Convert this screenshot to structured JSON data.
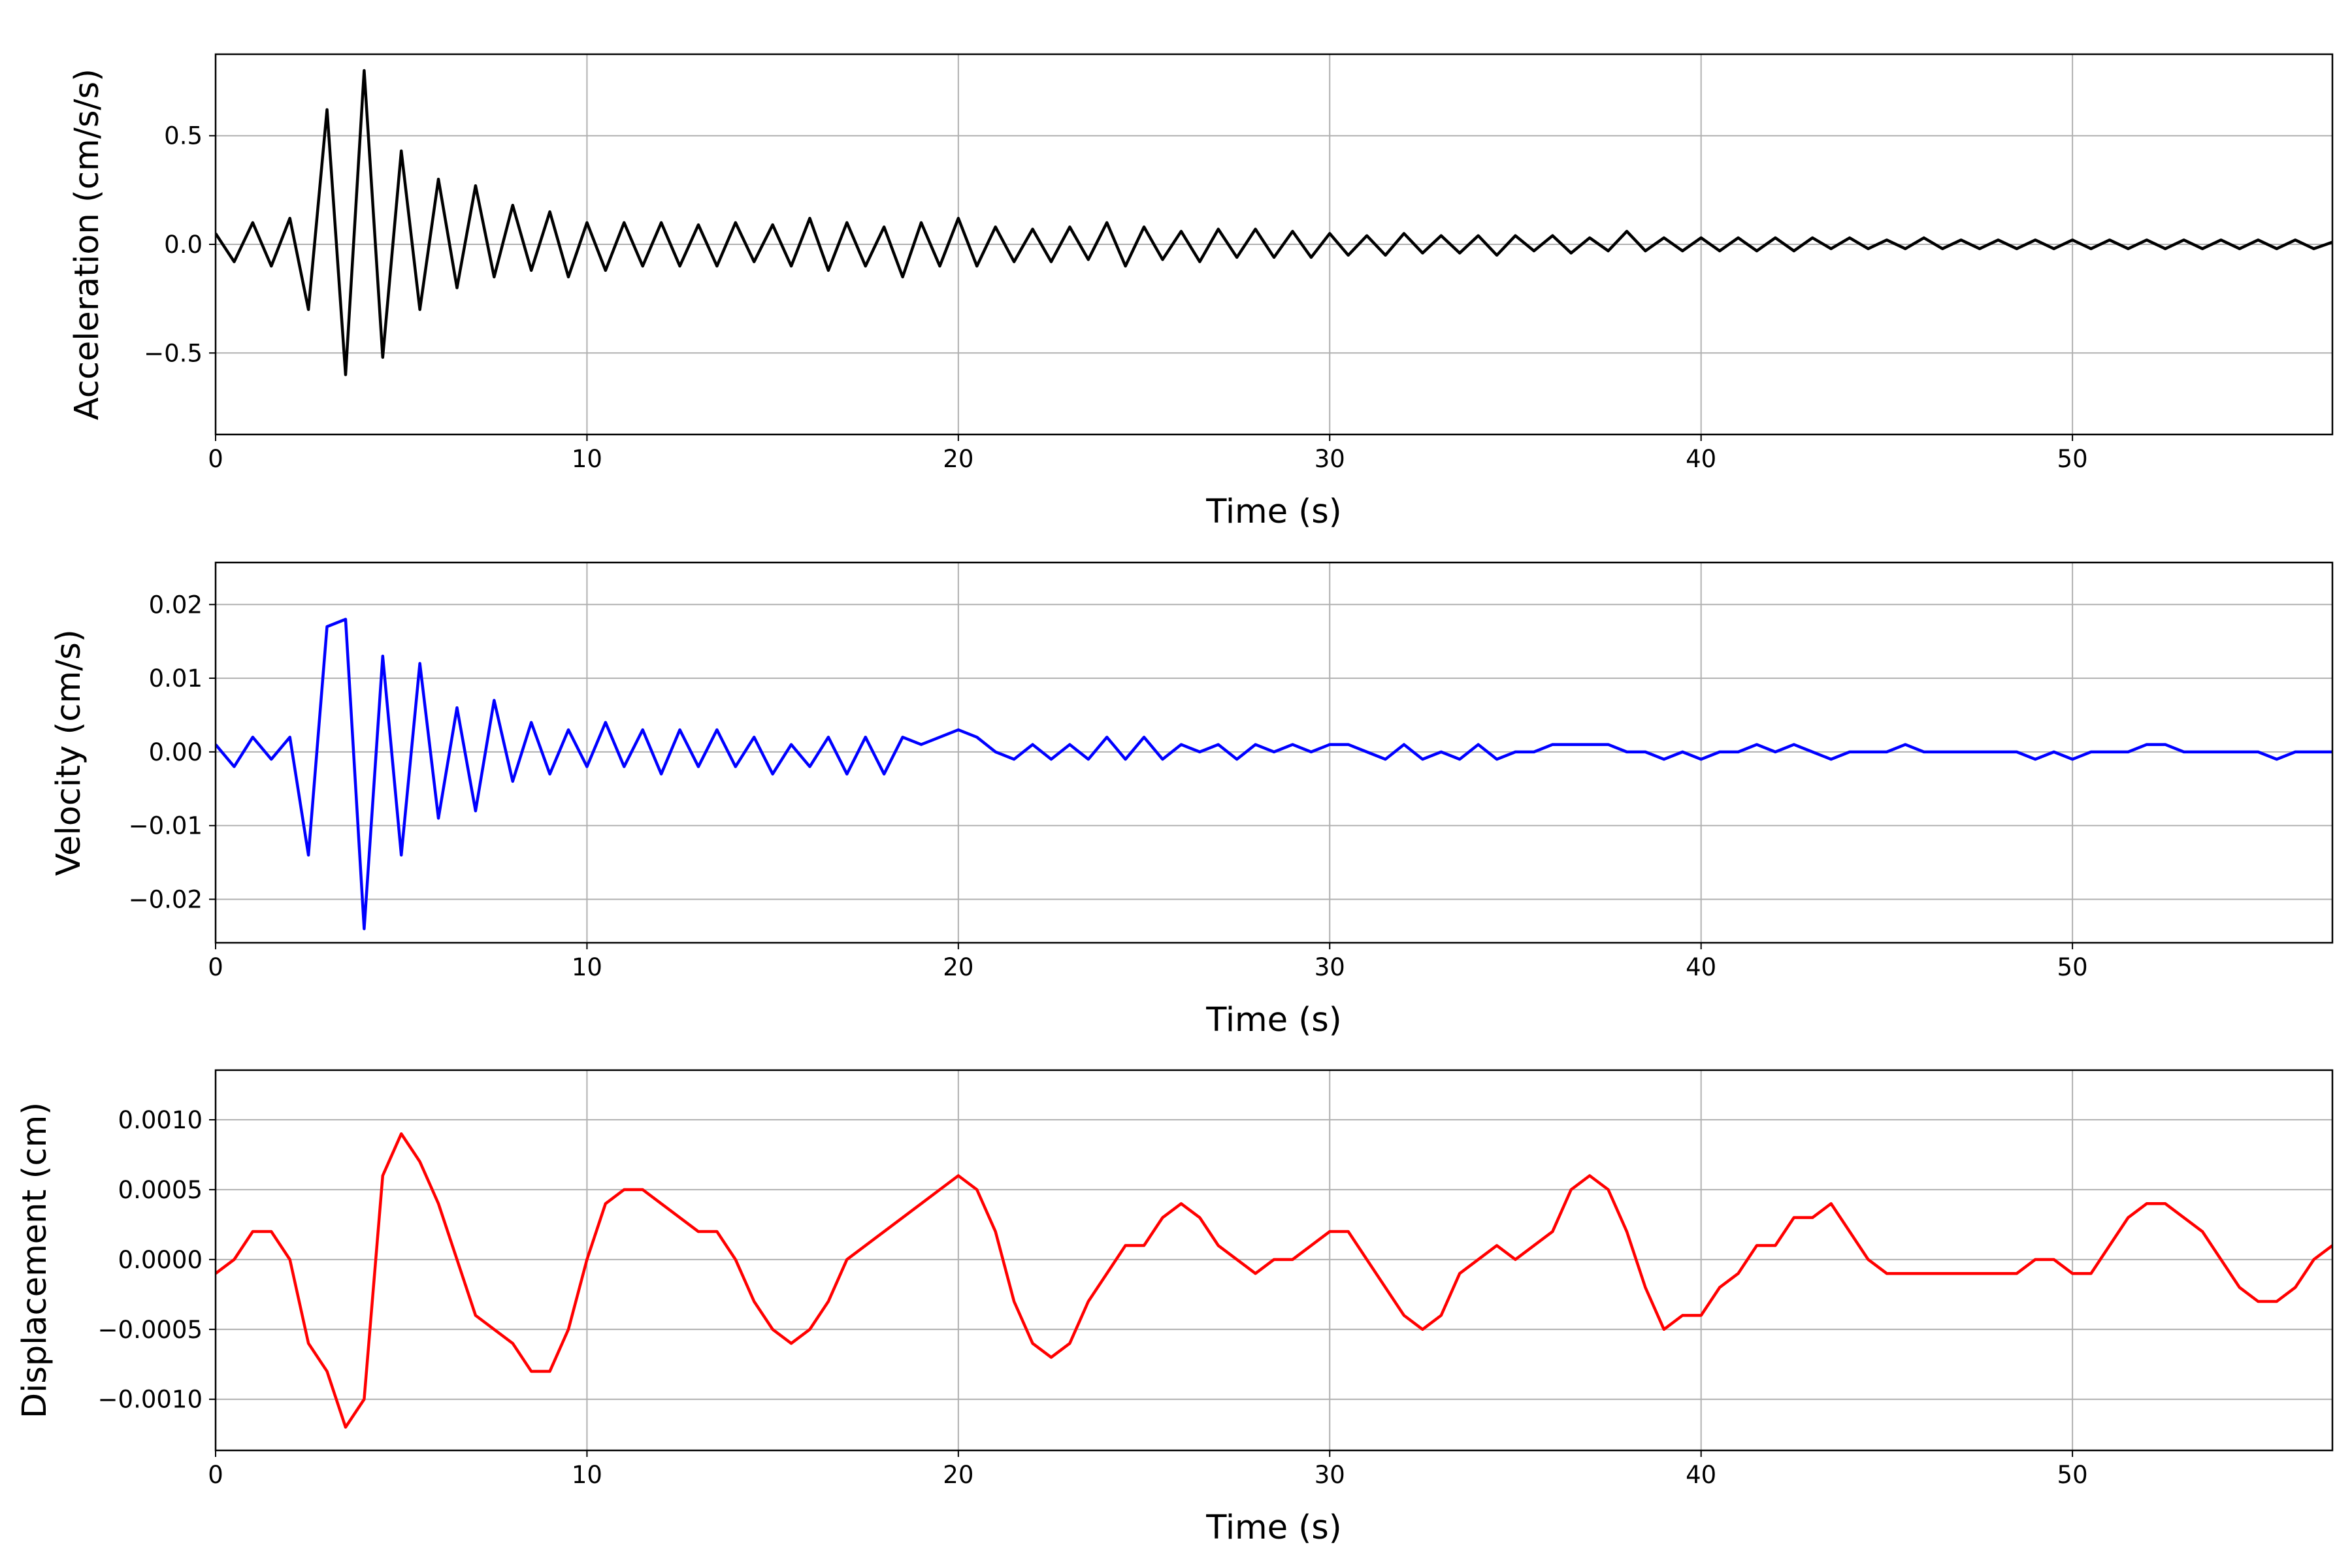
{
  "chart_data": [
    {
      "type": "line",
      "xlabel": "Time (s)",
      "ylabel": "Acceleration (cm/s/s)",
      "color": "#000000",
      "grid": true,
      "xlim": [
        0,
        57
      ],
      "xticks": [
        0,
        10,
        20,
        30,
        40,
        50
      ],
      "ylim": [
        -0.875,
        0.875
      ],
      "yticks": [
        {
          "value": -0.5,
          "label": "−0.5"
        },
        {
          "value": 0,
          "label": "0.0"
        },
        {
          "value": 0.5,
          "label": "0.5"
        }
      ],
      "x": [
        0,
        0.5,
        1,
        1.5,
        2,
        2.5,
        3,
        3.5,
        4,
        4.5,
        5,
        5.5,
        6,
        6.5,
        7,
        7.5,
        8,
        8.5,
        9,
        9.5,
        10,
        10.5,
        11,
        11.5,
        12,
        12.5,
        13,
        13.5,
        14,
        14.5,
        15,
        15.5,
        16,
        16.5,
        17,
        17.5,
        18,
        18.5,
        19,
        19.5,
        20,
        20.5,
        21,
        21.5,
        22,
        22.5,
        23,
        23.5,
        24,
        24.5,
        25,
        25.5,
        26,
        26.5,
        27,
        27.5,
        28,
        28.5,
        29,
        29.5,
        30,
        30.5,
        31,
        31.5,
        32,
        32.5,
        33,
        33.5,
        34,
        34.5,
        35,
        35.5,
        36,
        36.5,
        37,
        37.5,
        38,
        38.5,
        39,
        39.5,
        40,
        40.5,
        41,
        41.5,
        42,
        42.5,
        43,
        43.5,
        44,
        44.5,
        45,
        45.5,
        46,
        46.5,
        47,
        47.5,
        48,
        48.5,
        49,
        49.5,
        50,
        50.5,
        51,
        51.5,
        52,
        52.5,
        53,
        53.5,
        54,
        54.5,
        55,
        55.5,
        56,
        56.5,
        57
      ],
      "values": [
        0.05,
        -0.08,
        0.1,
        -0.1,
        0.12,
        -0.3,
        0.62,
        -0.6,
        0.8,
        -0.52,
        0.43,
        -0.3,
        0.3,
        -0.2,
        0.27,
        -0.15,
        0.18,
        -0.12,
        0.15,
        -0.15,
        0.1,
        -0.12,
        0.1,
        -0.1,
        0.1,
        -0.1,
        0.09,
        -0.1,
        0.1,
        -0.08,
        0.09,
        -0.1,
        0.12,
        -0.12,
        0.1,
        -0.1,
        0.08,
        -0.15,
        0.1,
        -0.1,
        0.12,
        -0.1,
        0.08,
        -0.08,
        0.07,
        -0.08,
        0.08,
        -0.07,
        0.1,
        -0.1,
        0.08,
        -0.07,
        0.06,
        -0.08,
        0.07,
        -0.06,
        0.07,
        -0.06,
        0.06,
        -0.06,
        0.05,
        -0.05,
        0.04,
        -0.05,
        0.05,
        -0.04,
        0.04,
        -0.04,
        0.04,
        -0.05,
        0.04,
        -0.03,
        0.04,
        -0.04,
        0.03,
        -0.03,
        0.06,
        -0.03,
        0.03,
        -0.03,
        0.03,
        -0.03,
        0.03,
        -0.03,
        0.03,
        -0.03,
        0.03,
        -0.02,
        0.03,
        -0.02,
        0.02,
        -0.02,
        0.03,
        -0.02,
        0.02,
        -0.02,
        0.02,
        -0.02,
        0.02,
        -0.02,
        0.02,
        -0.02,
        0.02,
        -0.02,
        0.02,
        -0.02,
        0.02,
        -0.02,
        0.02,
        -0.02,
        0.02,
        -0.02,
        0.02,
        -0.02,
        0.01
      ]
    },
    {
      "type": "line",
      "xlabel": "Time (s)",
      "ylabel": "Velocity (cm/s)",
      "color": "#0000ff",
      "grid": true,
      "xlim": [
        0,
        57
      ],
      "xticks": [
        0,
        10,
        20,
        30,
        40,
        50
      ],
      "ylim": [
        -0.0259,
        0.0257
      ],
      "yticks": [
        {
          "value": -0.02,
          "label": "−0.02"
        },
        {
          "value": -0.01,
          "label": "−0.01"
        },
        {
          "value": 0,
          "label": "0.00"
        },
        {
          "value": 0.01,
          "label": "0.01"
        },
        {
          "value": 0.02,
          "label": "0.02"
        }
      ],
      "x": [
        0,
        0.5,
        1,
        1.5,
        2,
        2.5,
        3,
        3.5,
        4,
        4.5,
        5,
        5.5,
        6,
        6.5,
        7,
        7.5,
        8,
        8.5,
        9,
        9.5,
        10,
        10.5,
        11,
        11.5,
        12,
        12.5,
        13,
        13.5,
        14,
        14.5,
        15,
        15.5,
        16,
        16.5,
        17,
        17.5,
        18,
        18.5,
        19,
        19.5,
        20,
        20.5,
        21,
        21.5,
        22,
        22.5,
        23,
        23.5,
        24,
        24.5,
        25,
        25.5,
        26,
        26.5,
        27,
        27.5,
        28,
        28.5,
        29,
        29.5,
        30,
        30.5,
        31,
        31.5,
        32,
        32.5,
        33,
        33.5,
        34,
        34.5,
        35,
        35.5,
        36,
        36.5,
        37,
        37.5,
        38,
        38.5,
        39,
        39.5,
        40,
        40.5,
        41,
        41.5,
        42,
        42.5,
        43,
        43.5,
        44,
        44.5,
        45,
        45.5,
        46,
        46.5,
        47,
        47.5,
        48,
        48.5,
        49,
        49.5,
        50,
        50.5,
        51,
        51.5,
        52,
        52.5,
        53,
        53.5,
        54,
        54.5,
        55,
        55.5,
        56,
        56.5,
        57
      ],
      "values": [
        0.001,
        -0.002,
        0.002,
        -0.001,
        0.002,
        -0.014,
        0.017,
        0.018,
        -0.024,
        0.013,
        -0.014,
        0.012,
        -0.009,
        0.006,
        -0.008,
        0.007,
        -0.004,
        0.004,
        -0.003,
        0.003,
        -0.002,
        0.004,
        -0.002,
        0.003,
        -0.003,
        0.003,
        -0.002,
        0.003,
        -0.002,
        0.002,
        -0.003,
        0.001,
        -0.002,
        0.002,
        -0.003,
        0.002,
        -0.003,
        0.002,
        0.001,
        0.002,
        0.003,
        0.002,
        0,
        -0.001,
        0.001,
        -0.001,
        0.001,
        -0.001,
        0.002,
        -0.001,
        0.002,
        -0.001,
        0.001,
        0,
        0.001,
        -0.001,
        0.001,
        0,
        0.001,
        0,
        0.001,
        0.001,
        0,
        -0.001,
        0.001,
        -0.001,
        0,
        -0.001,
        0.001,
        -0.001,
        0,
        0,
        0.001,
        0.001,
        0.001,
        0.001,
        0,
        0,
        -0.001,
        0,
        -0.001,
        0,
        0,
        0.001,
        0,
        0.001,
        0,
        -0.001,
        0,
        0,
        0,
        0.001,
        0,
        0,
        0,
        0,
        0,
        0,
        -0.001,
        0,
        -0.001,
        0,
        0,
        0,
        0.001,
        0.001,
        0,
        0,
        0,
        0,
        0,
        -0.001,
        0,
        0,
        0
      ]
    },
    {
      "type": "line",
      "xlabel": "Time (s)",
      "ylabel": "Displacement (cm)",
      "color": "#ff0000",
      "grid": true,
      "xlim": [
        0,
        57
      ],
      "xticks": [
        0,
        10,
        20,
        30,
        40,
        50
      ],
      "ylim": [
        -0.001366,
        0.001355
      ],
      "yticks": [
        {
          "value": -0.001,
          "label": "−0.0010"
        },
        {
          "value": -0.0005,
          "label": "−0.0005"
        },
        {
          "value": 0,
          "label": "0.0000"
        },
        {
          "value": 0.0005,
          "label": "0.0005"
        },
        {
          "value": 0.001,
          "label": "0.0010"
        }
      ],
      "x": [
        0,
        0.5,
        1,
        1.5,
        2,
        2.5,
        3,
        3.5,
        4,
        4.5,
        5,
        5.5,
        6,
        6.5,
        7,
        7.5,
        8,
        8.5,
        9,
        9.5,
        10,
        10.5,
        11,
        11.5,
        12,
        12.5,
        13,
        13.5,
        14,
        14.5,
        15,
        15.5,
        16,
        16.5,
        17,
        17.5,
        18,
        18.5,
        19,
        19.5,
        20,
        20.5,
        21,
        21.5,
        22,
        22.5,
        23,
        23.5,
        24,
        24.5,
        25,
        25.5,
        26,
        26.5,
        27,
        27.5,
        28,
        28.5,
        29,
        29.5,
        30,
        30.5,
        31,
        31.5,
        32,
        32.5,
        33,
        33.5,
        34,
        34.5,
        35,
        35.5,
        36,
        36.5,
        37,
        37.5,
        38,
        38.5,
        39,
        39.5,
        40,
        40.5,
        41,
        41.5,
        42,
        42.5,
        43,
        43.5,
        44,
        44.5,
        45,
        45.5,
        46,
        46.5,
        47,
        47.5,
        48,
        48.5,
        49,
        49.5,
        50,
        50.5,
        51,
        51.5,
        52,
        52.5,
        53,
        53.5,
        54,
        54.5,
        55,
        55.5,
        56,
        56.5,
        57
      ],
      "values": [
        -0.0001,
        0,
        0.0002,
        0.0002,
        0,
        -0.0006,
        -0.0008,
        -0.0012,
        -0.001,
        0.0006,
        0.0009,
        0.0007,
        0.0004,
        0,
        -0.0004,
        -0.0005,
        -0.0006,
        -0.0008,
        -0.0008,
        -0.0005,
        0,
        0.0004,
        0.0005,
        0.0005,
        0.0004,
        0.0003,
        0.0002,
        0.0002,
        0,
        -0.0003,
        -0.0005,
        -0.0006,
        -0.0005,
        -0.0003,
        0,
        0.0001,
        0.0002,
        0.0003,
        0.0004,
        0.0005,
        0.0006,
        0.0005,
        0.0002,
        -0.0003,
        -0.0006,
        -0.0007,
        -0.0006,
        -0.0003,
        -0.0001,
        0.0001,
        0.0001,
        0.0003,
        0.0004,
        0.0003,
        0.0001,
        0,
        -0.0001,
        0,
        0,
        0.0001,
        0.0002,
        0.0002,
        0,
        -0.0002,
        -0.0004,
        -0.0005,
        -0.0004,
        -0.0001,
        0,
        0.0001,
        0,
        0.0001,
        0.0002,
        0.0005,
        0.0006,
        0.0005,
        0.0002,
        -0.0002,
        -0.0005,
        -0.0004,
        -0.0004,
        -0.0002,
        -0.0001,
        0.0001,
        0.0001,
        0.0003,
        0.0003,
        0.0004,
        0.0002,
        0,
        -0.0001,
        -0.0001,
        -0.0001,
        -0.0001,
        -0.0001,
        -0.0001,
        -0.0001,
        -0.0001,
        0,
        0,
        -0.0001,
        -0.0001,
        0.0001,
        0.0003,
        0.0004,
        0.0004,
        0.0003,
        0.0002,
        0,
        -0.0002,
        -0.0003,
        -0.0003,
        -0.0002,
        0,
        0.0001
      ]
    }
  ]
}
